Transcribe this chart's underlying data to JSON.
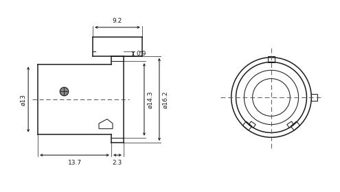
{
  "bg_color": "#ffffff",
  "line_color": "#1a1a1a",
  "fig_width": 4.95,
  "fig_height": 2.8,
  "dpi": 100,
  "dim_9_2": "9.2",
  "dim_0_9": "0.9",
  "dim_13": "ø13",
  "dim_14_3": "ø14.3",
  "dim_16_2": "ø16.2",
  "dim_13_7": "13.7",
  "dim_2_3": "2.3"
}
